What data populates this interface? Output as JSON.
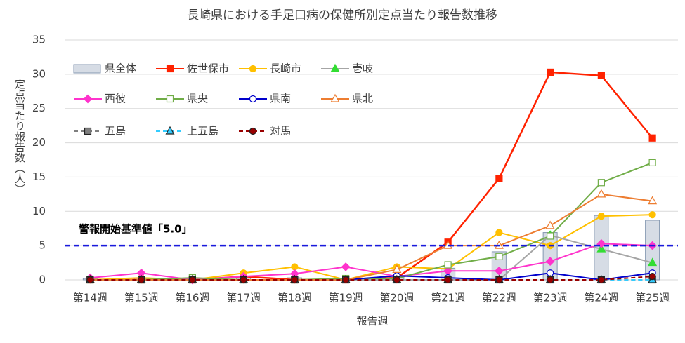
{
  "chart_data": {
    "type": "line",
    "title": "長崎県における手足口病の保健所別定点当たり報告数推移",
    "x_label": "報告週",
    "y_label": "定点当たり報告数（人）",
    "categories": [
      "第14週",
      "第15週",
      "第16週",
      "第17週",
      "第18週",
      "第19週",
      "第20週",
      "第21週",
      "第22週",
      "第23週",
      "第24週",
      "第25週"
    ],
    "ylim": [
      0,
      35
    ],
    "yticks": [
      0,
      5,
      10,
      15,
      20,
      25,
      30,
      35
    ],
    "grid": true,
    "reference_line": {
      "value": 5,
      "label": "警報開始基準値「5.0」",
      "color": "#1a1adc"
    },
    "series": [
      {
        "name": "県全体",
        "type": "bar",
        "color": "#d6dce5",
        "values": [
          0.2,
          0.3,
          0.1,
          0.4,
          0.3,
          0.2,
          0.6,
          1.7,
          4.1,
          6.9,
          9.4,
          8.7
        ]
      },
      {
        "name": "佐世保市",
        "type": "line",
        "color": "#ff2200",
        "marker": "square",
        "values": [
          0,
          0,
          0,
          0.5,
          0,
          0,
          0.3,
          5.5,
          14.8,
          30.3,
          29.8,
          20.7
        ]
      },
      {
        "name": "長崎市",
        "type": "line",
        "color": "#ffc000",
        "marker": "circle",
        "values": [
          0,
          0.3,
          0,
          1,
          1.9,
          0,
          1.9,
          1.6,
          6.9,
          5,
          9.3,
          9.5
        ]
      },
      {
        "name": "壱岐",
        "type": "line",
        "color": "#a5a5a5",
        "marker": "triangle",
        "marker_color": "#33dd33",
        "values": [
          0,
          0,
          0,
          0,
          0,
          0,
          0,
          0,
          0,
          6.5,
          4.5,
          2.5
        ]
      },
      {
        "name": "西彼",
        "type": "line",
        "color": "#ff33cc",
        "marker": "diamond",
        "values": [
          0.3,
          1,
          0,
          0.5,
          0.9,
          1.9,
          0.5,
          1.3,
          1.3,
          2.7,
          5.3,
          5
        ]
      },
      {
        "name": "県央",
        "type": "line",
        "color": "#70ad47",
        "marker": "square-open",
        "values": [
          0,
          0,
          0.3,
          0,
          0,
          0.2,
          0.2,
          2.2,
          3.4,
          6.4,
          14.2,
          17.1
        ]
      },
      {
        "name": "県南",
        "type": "line",
        "color": "#0000cc",
        "marker": "circle-open",
        "values": [
          0,
          0,
          0,
          0,
          0,
          0,
          0.6,
          0.3,
          0,
          1,
          0,
          1
        ]
      },
      {
        "name": "県北",
        "type": "line",
        "color": "#ed7d31",
        "marker": "triangle-open",
        "values": [
          0,
          0,
          0,
          0,
          0,
          0,
          1.5,
          5,
          5,
          7.9,
          12.5,
          11.5
        ]
      },
      {
        "name": "五島",
        "type": "line",
        "color": "#7f7f7f",
        "marker": "square",
        "dashed": true,
        "values": [
          0,
          0,
          0,
          0,
          0,
          0,
          0,
          0,
          0,
          0,
          0,
          0
        ]
      },
      {
        "name": "上五島",
        "type": "line",
        "color": "#33ccff",
        "marker": "triangle",
        "dashed": true,
        "values": [
          0,
          0,
          0,
          0,
          0,
          0,
          0,
          0,
          0,
          0,
          0,
          0
        ]
      },
      {
        "name": "対馬",
        "type": "line",
        "color": "#990000",
        "marker": "circle",
        "dashed": true,
        "values": [
          0,
          0,
          0,
          0,
          0,
          0,
          0,
          0,
          0,
          0,
          0,
          0.5
        ]
      }
    ]
  }
}
